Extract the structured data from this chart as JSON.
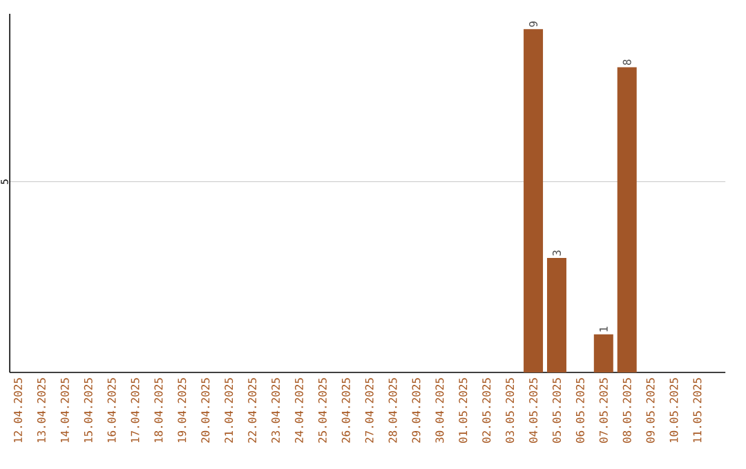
{
  "chart_data": {
    "type": "bar",
    "categories": [
      "12.04.2025",
      "13.04.2025",
      "14.04.2025",
      "15.04.2025",
      "16.04.2025",
      "17.04.2025",
      "18.04.2025",
      "19.04.2025",
      "20.04.2025",
      "21.04.2025",
      "22.04.2025",
      "23.04.2025",
      "24.04.2025",
      "25.04.2025",
      "26.04.2025",
      "27.04.2025",
      "28.04.2025",
      "29.04.2025",
      "30.04.2025",
      "01.05.2025",
      "02.05.2025",
      "03.05.2025",
      "04.05.2025",
      "05.05.2025",
      "06.05.2025",
      "07.05.2025",
      "08.05.2025",
      "09.05.2025",
      "10.05.2025",
      "11.05.2025"
    ],
    "values": [
      null,
      null,
      null,
      null,
      null,
      null,
      null,
      null,
      null,
      null,
      null,
      null,
      null,
      null,
      null,
      null,
      null,
      null,
      null,
      null,
      null,
      null,
      9,
      3,
      null,
      1,
      8,
      null,
      null,
      null
    ],
    "data_labels": true,
    "color": "#a25628",
    "ylim": [
      0,
      9.4
    ],
    "yticks": [
      5
    ],
    "grid": "y"
  }
}
